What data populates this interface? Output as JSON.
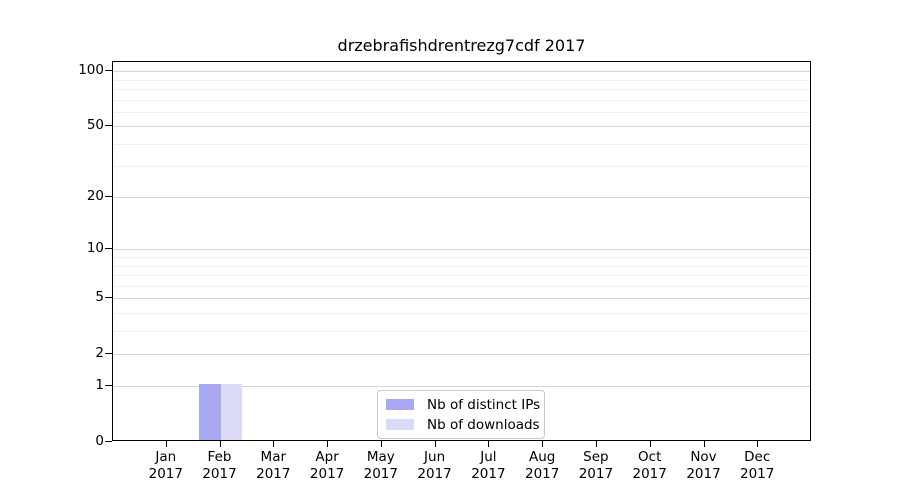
{
  "chart_data": {
    "type": "bar",
    "title": "drzebrafishdrentrezg7cdf 2017",
    "x": {
      "months": [
        "Jan",
        "Feb",
        "Mar",
        "Apr",
        "May",
        "Jun",
        "Jul",
        "Aug",
        "Sep",
        "Oct",
        "Nov",
        "Dec"
      ],
      "year": "2017"
    },
    "categories": [
      "Jan 2017",
      "Feb 2017",
      "Mar 2017",
      "Apr 2017",
      "May 2017",
      "Jun 2017",
      "Jul 2017",
      "Aug 2017",
      "Sep 2017",
      "Oct 2017",
      "Nov 2017",
      "Dec 2017"
    ],
    "series": [
      {
        "name": "Nb of distinct IPs",
        "color": "#a9a9f1",
        "values": [
          0,
          1,
          0,
          0,
          0,
          0,
          0,
          0,
          0,
          0,
          0,
          0
        ]
      },
      {
        "name": "Nb of downloads",
        "color": "#dbdbf8",
        "values": [
          0,
          1,
          0,
          0,
          0,
          0,
          0,
          0,
          0,
          0,
          0,
          0
        ]
      }
    ],
    "y_axis": {
      "scale": "log1p",
      "tick_values": [
        0,
        1,
        2,
        5,
        10,
        20,
        50,
        100
      ],
      "minor_gridline_values": [
        3,
        4,
        6,
        7,
        8,
        9,
        30,
        40,
        60,
        70,
        80,
        90
      ],
      "ylim": [
        0,
        112
      ]
    },
    "grid": true,
    "legend": {
      "position": "bottom-center"
    },
    "colors": {
      "background": "#ffffff",
      "axis": "#000000",
      "grid_major": "#d4d4d4",
      "grid_minor": "#efefef"
    }
  }
}
